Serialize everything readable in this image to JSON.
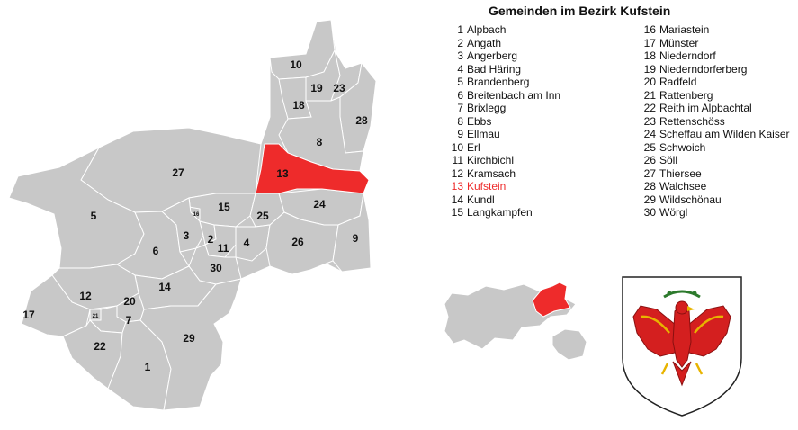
{
  "title": "Gemeinden im Bezirk Kufstein",
  "highlight_color": "#ee2b2b",
  "region_color": "#c8c8c8",
  "legend": [
    {
      "n": "1",
      "name": "Alpbach"
    },
    {
      "n": "2",
      "name": "Angath"
    },
    {
      "n": "3",
      "name": "Angerberg"
    },
    {
      "n": "4",
      "name": "Bad Häring"
    },
    {
      "n": "5",
      "name": "Brandenberg"
    },
    {
      "n": "6",
      "name": "Breitenbach am Inn"
    },
    {
      "n": "7",
      "name": "Brixlegg"
    },
    {
      "n": "8",
      "name": "Ebbs"
    },
    {
      "n": "9",
      "name": "Ellmau"
    },
    {
      "n": "10",
      "name": "Erl"
    },
    {
      "n": "11",
      "name": "Kirchbichl"
    },
    {
      "n": "12",
      "name": "Kramsach"
    },
    {
      "n": "13",
      "name": "Kufstein",
      "highlighted": true
    },
    {
      "n": "14",
      "name": "Kundl"
    },
    {
      "n": "15",
      "name": "Langkampfen"
    },
    {
      "n": "16",
      "name": "Mariastein"
    },
    {
      "n": "17",
      "name": "Münster"
    },
    {
      "n": "18",
      "name": "Niederndorf"
    },
    {
      "n": "19",
      "name": "Niederndorferberg"
    },
    {
      "n": "20",
      "name": "Radfeld"
    },
    {
      "n": "21",
      "name": "Rattenberg"
    },
    {
      "n": "22",
      "name": "Reith im Alpbachtal"
    },
    {
      "n": "23",
      "name": "Rettenschöss"
    },
    {
      "n": "24",
      "name": "Scheffau am Wilden Kaiser"
    },
    {
      "n": "25",
      "name": "Schwoich"
    },
    {
      "n": "26",
      "name": "Söll"
    },
    {
      "n": "27",
      "name": "Thiersee"
    },
    {
      "n": "28",
      "name": "Walchsee"
    },
    {
      "n": "29",
      "name": "Wildschönau"
    },
    {
      "n": "30",
      "name": "Wörgl"
    }
  ],
  "map_labels": [
    "1",
    "2",
    "3",
    "4",
    "5",
    "6",
    "7",
    "8",
    "9",
    "10",
    "11",
    "12",
    "13",
    "14",
    "15",
    "16",
    "17",
    "18",
    "19",
    "20",
    "21",
    "22",
    "23",
    "24",
    "25",
    "26",
    "27",
    "28",
    "29",
    "30"
  ],
  "coat_of_arms": "tyrol-eagle-coat-of-arms",
  "locator_map": "tyrol-locator-map"
}
